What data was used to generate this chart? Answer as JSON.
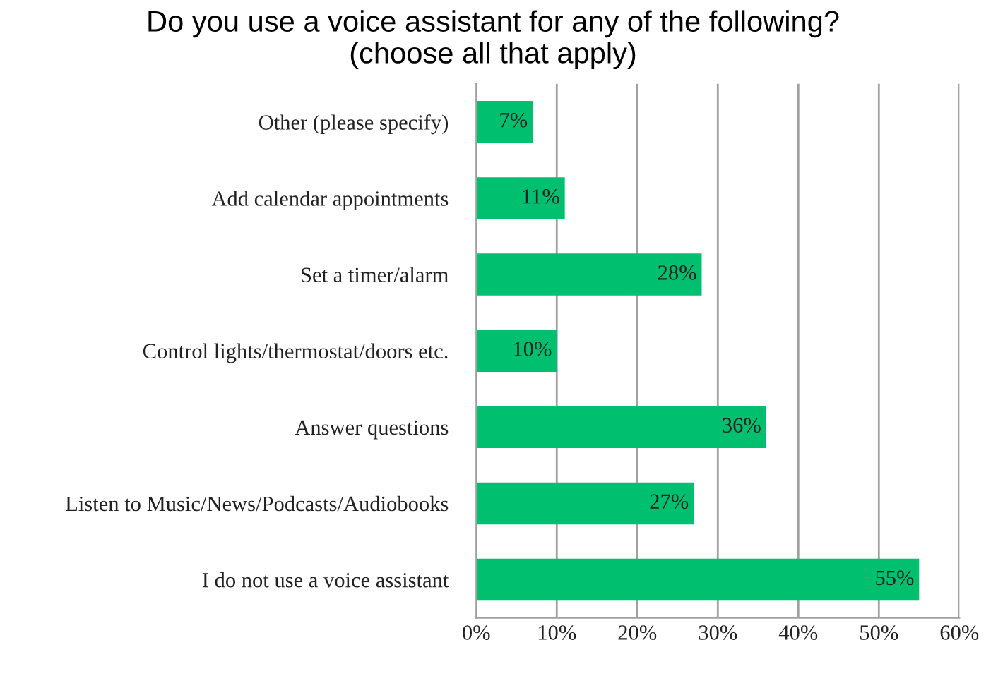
{
  "chart_data": {
    "type": "bar",
    "orientation": "horizontal",
    "title": "Do you use a voice assistant for any of the following?\n(choose all that apply)",
    "categories": [
      "Other (please specify)",
      "Add calendar appointments",
      "Set a timer/alarm",
      "Control lights/thermostat/doors etc.",
      "Answer questions",
      "Listen to Music/News/Podcasts/Audiobooks",
      "I do not use a voice assistant"
    ],
    "values": [
      7,
      11,
      28,
      10,
      36,
      27,
      55
    ],
    "value_labels": [
      "7%",
      "11%",
      "28%",
      "10%",
      "36%",
      "27%",
      "55%"
    ],
    "color": "#00bf6f",
    "xlim": [
      0,
      60
    ],
    "xticks": [
      {
        "value": 0,
        "label": "0%"
      },
      {
        "value": 10,
        "label": "10%"
      },
      {
        "value": 20,
        "label": "20%"
      },
      {
        "value": 30,
        "label": "30%"
      },
      {
        "value": 40,
        "label": "40%"
      },
      {
        "value": 50,
        "label": "50%"
      },
      {
        "value": 60,
        "label": "60%"
      }
    ],
    "grid": "x"
  }
}
